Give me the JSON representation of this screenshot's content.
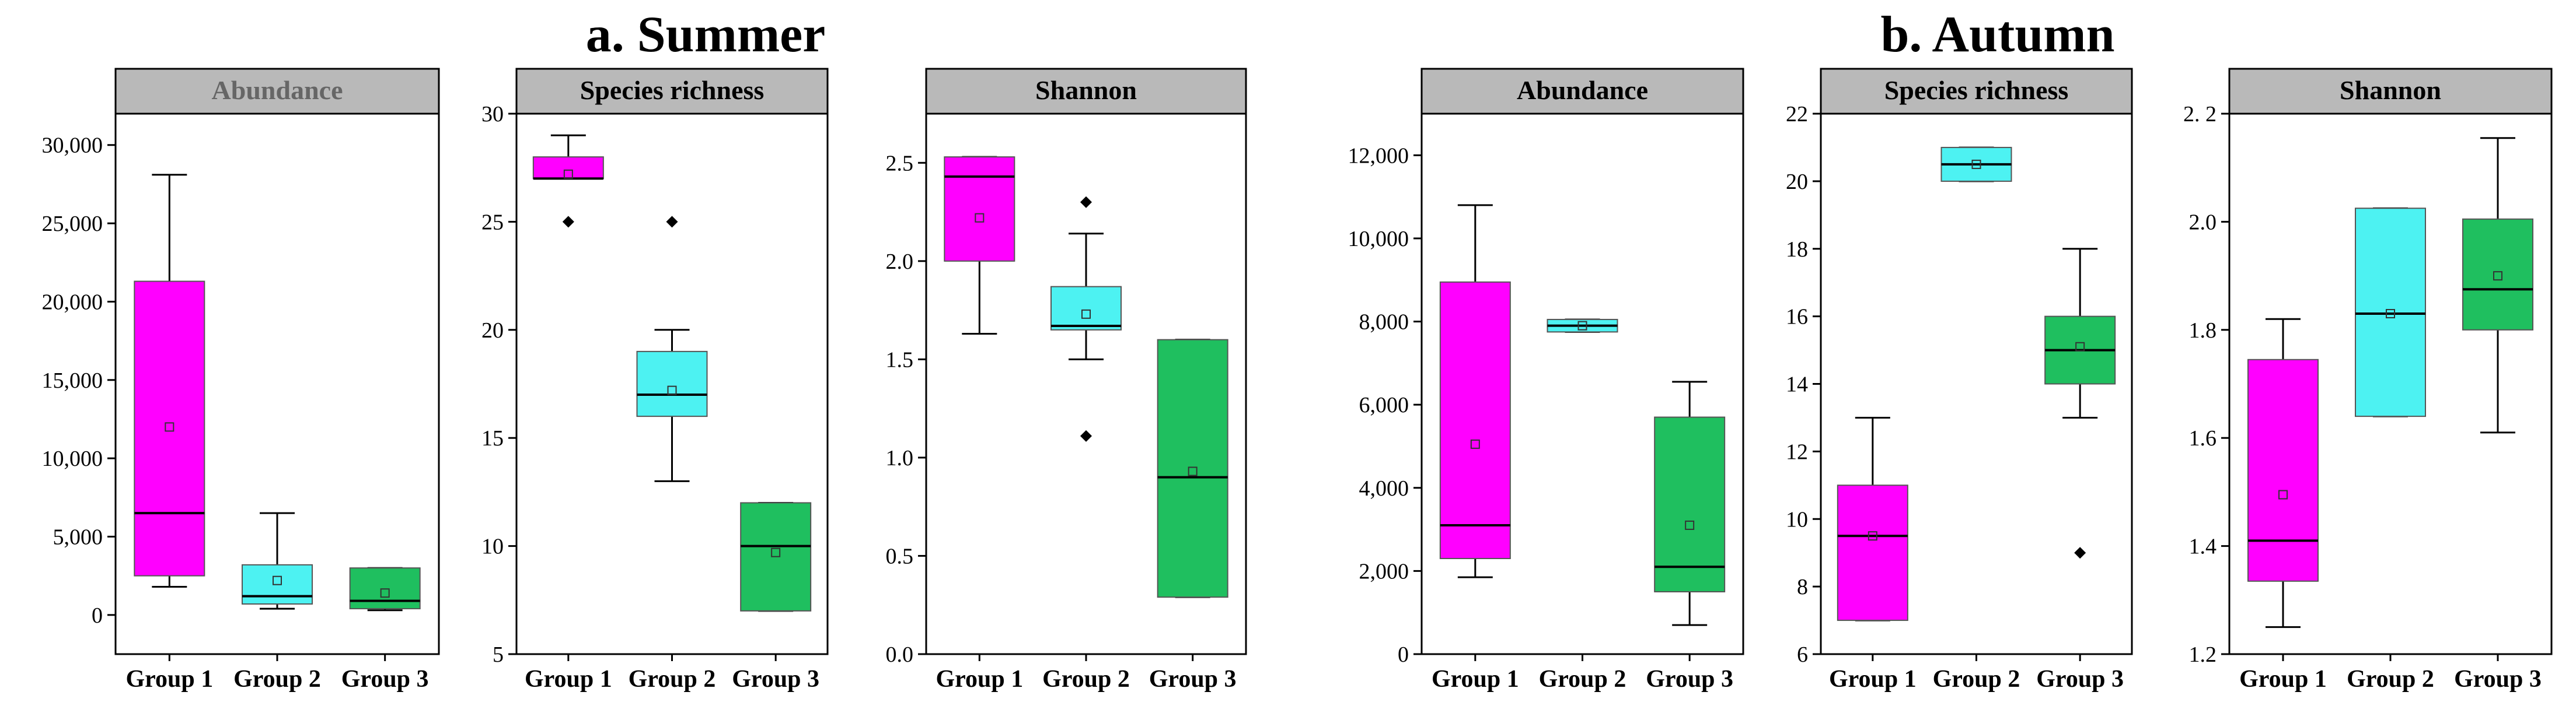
{
  "figure": {
    "section_titles": [
      "a. Summer",
      "b. Autumn"
    ]
  },
  "chart_data": [
    {
      "type": "box",
      "section": "a. Summer",
      "title": "Abundance",
      "title_muted": true,
      "categories": [
        "Group 1",
        "Group 2",
        "Group 3"
      ],
      "ylim": [
        -2500,
        32000
      ],
      "yticks": [
        0,
        5000,
        10000,
        15000,
        20000,
        25000,
        30000
      ],
      "ytick_labels": [
        "0",
        "5,000",
        "10,000",
        "15,000",
        "20,000",
        "25,000",
        "30,000"
      ],
      "boxes": [
        {
          "name": "Group 1",
          "color": "#ff00ff",
          "q1": 2500,
          "median": 6500,
          "q3": 21300,
          "whisker_low": 1800,
          "whisker_high": 28100,
          "mean": 12000,
          "outliers": []
        },
        {
          "name": "Group 2",
          "color": "#4df2f2",
          "q1": 700,
          "median": 1200,
          "q3": 3200,
          "whisker_low": 400,
          "whisker_high": 6500,
          "mean": 2200,
          "outliers": []
        },
        {
          "name": "Group 3",
          "color": "#1fbf5f",
          "q1": 400,
          "median": 900,
          "q3": 3000,
          "whisker_low": 300,
          "whisker_high": 3000,
          "mean": 1400,
          "outliers": []
        }
      ]
    },
    {
      "type": "box",
      "section": "a. Summer",
      "title": "Species richness",
      "title_muted": false,
      "categories": [
        "Group 1",
        "Group 2",
        "Group 3"
      ],
      "ylim": [
        5,
        30
      ],
      "yticks": [
        5,
        10,
        15,
        20,
        25,
        30
      ],
      "ytick_labels": [
        "5",
        "10",
        "15",
        "20",
        "25",
        "30"
      ],
      "boxes": [
        {
          "name": "Group 1",
          "color": "#ff00ff",
          "q1": 27,
          "median": 27,
          "q3": 28,
          "whisker_low": 27,
          "whisker_high": 29,
          "mean": 27.2,
          "outliers": [
            25
          ]
        },
        {
          "name": "Group 2",
          "color": "#4df2f2",
          "q1": 16,
          "median": 17,
          "q3": 19,
          "whisker_low": 13,
          "whisker_high": 20,
          "mean": 17.2,
          "outliers": [
            25
          ]
        },
        {
          "name": "Group 3",
          "color": "#1fbf5f",
          "q1": 7,
          "median": 10,
          "q3": 12,
          "whisker_low": 7,
          "whisker_high": 12,
          "mean": 9.7,
          "outliers": []
        }
      ]
    },
    {
      "type": "box",
      "section": "a. Summer",
      "title": "Shannon",
      "title_muted": false,
      "categories": [
        "Group 1",
        "Group 2",
        "Group 3"
      ],
      "ylim": [
        0,
        2.75
      ],
      "yticks": [
        0,
        0.5,
        1.0,
        1.5,
        2.0,
        2.5
      ],
      "ytick_labels": [
        "0.0",
        "0.5",
        "1.0",
        "1.5",
        "2.0",
        "2.5"
      ],
      "boxes": [
        {
          "name": "Group 1",
          "color": "#ff00ff",
          "q1": 2.0,
          "median": 2.43,
          "q3": 2.53,
          "whisker_low": 1.63,
          "whisker_high": 2.53,
          "mean": 2.22,
          "outliers": []
        },
        {
          "name": "Group 2",
          "color": "#4df2f2",
          "q1": 1.65,
          "median": 1.67,
          "q3": 1.87,
          "whisker_low": 1.5,
          "whisker_high": 2.14,
          "mean": 1.73,
          "outliers": [
            2.3,
            1.11
          ]
        },
        {
          "name": "Group 3",
          "color": "#1fbf5f",
          "q1": 0.29,
          "median": 0.9,
          "q3": 1.6,
          "whisker_low": 0.29,
          "whisker_high": 1.6,
          "mean": 0.93,
          "outliers": []
        }
      ]
    },
    {
      "type": "box",
      "section": "b. Autumn",
      "title": "Abundance",
      "title_muted": false,
      "categories": [
        "Group 1",
        "Group 2",
        "Group 3"
      ],
      "ylim": [
        0,
        13000
      ],
      "yticks": [
        0,
        2000,
        4000,
        6000,
        8000,
        10000,
        12000
      ],
      "ytick_labels": [
        "0",
        "2,000",
        "4,000",
        "6,000",
        "8,000",
        "10,000",
        "12,000"
      ],
      "boxes": [
        {
          "name": "Group 1",
          "color": "#ff00ff",
          "q1": 2300,
          "median": 3100,
          "q3": 8950,
          "whisker_low": 1850,
          "whisker_high": 10800,
          "mean": 5050,
          "outliers": []
        },
        {
          "name": "Group 2",
          "color": "#4df2f2",
          "q1": 7750,
          "median": 7900,
          "q3": 8050,
          "whisker_low": 7750,
          "whisker_high": 8050,
          "mean": 7900,
          "outliers": []
        },
        {
          "name": "Group 3",
          "color": "#1fbf5f",
          "q1": 1500,
          "median": 2100,
          "q3": 5700,
          "whisker_low": 700,
          "whisker_high": 6550,
          "mean": 3100,
          "outliers": []
        }
      ]
    },
    {
      "type": "box",
      "section": "b. Autumn",
      "title": "Species richness",
      "title_muted": false,
      "categories": [
        "Group 1",
        "Group 2",
        "Group 3"
      ],
      "ylim": [
        6,
        22
      ],
      "yticks": [
        6,
        8,
        10,
        12,
        14,
        16,
        18,
        20,
        22
      ],
      "ytick_labels": [
        "6",
        "8",
        "10",
        "12",
        "14",
        "16",
        "18",
        "20",
        "22"
      ],
      "boxes": [
        {
          "name": "Group 1",
          "color": "#ff00ff",
          "q1": 7,
          "median": 9.5,
          "q3": 11,
          "whisker_low": 7,
          "whisker_high": 13,
          "mean": 9.5,
          "outliers": []
        },
        {
          "name": "Group 2",
          "color": "#4df2f2",
          "q1": 20,
          "median": 20.5,
          "q3": 21,
          "whisker_low": 20,
          "whisker_high": 21,
          "mean": 20.5,
          "outliers": []
        },
        {
          "name": "Group 3",
          "color": "#1fbf5f",
          "q1": 14,
          "median": 15,
          "q3": 16,
          "whisker_low": 13,
          "whisker_high": 18,
          "mean": 15.1,
          "outliers": [
            9
          ]
        }
      ]
    },
    {
      "type": "box",
      "section": "b. Autumn",
      "title": "Shannon",
      "title_muted": false,
      "categories": [
        "Group 1",
        "Group 2",
        "Group 3"
      ],
      "ylim": [
        1.2,
        2.2
      ],
      "yticks": [
        1.2,
        1.4,
        1.6,
        1.8,
        2.0,
        2.2
      ],
      "ytick_labels": [
        "1.2",
        "1.4",
        "1.6",
        "1.8",
        "2.0",
        "2. 2"
      ],
      "boxes": [
        {
          "name": "Group 1",
          "color": "#ff00ff",
          "q1": 1.335,
          "median": 1.41,
          "q3": 1.745,
          "whisker_low": 1.25,
          "whisker_high": 1.82,
          "mean": 1.495,
          "outliers": []
        },
        {
          "name": "Group 2",
          "color": "#4df2f2",
          "q1": 1.64,
          "median": 1.83,
          "q3": 2.025,
          "whisker_low": 1.64,
          "whisker_high": 2.025,
          "mean": 1.83,
          "outliers": []
        },
        {
          "name": "Group 3",
          "color": "#1fbf5f",
          "q1": 1.8,
          "median": 1.875,
          "q3": 2.005,
          "whisker_low": 1.61,
          "whisker_high": 2.155,
          "mean": 1.9,
          "outliers": []
        }
      ]
    }
  ]
}
